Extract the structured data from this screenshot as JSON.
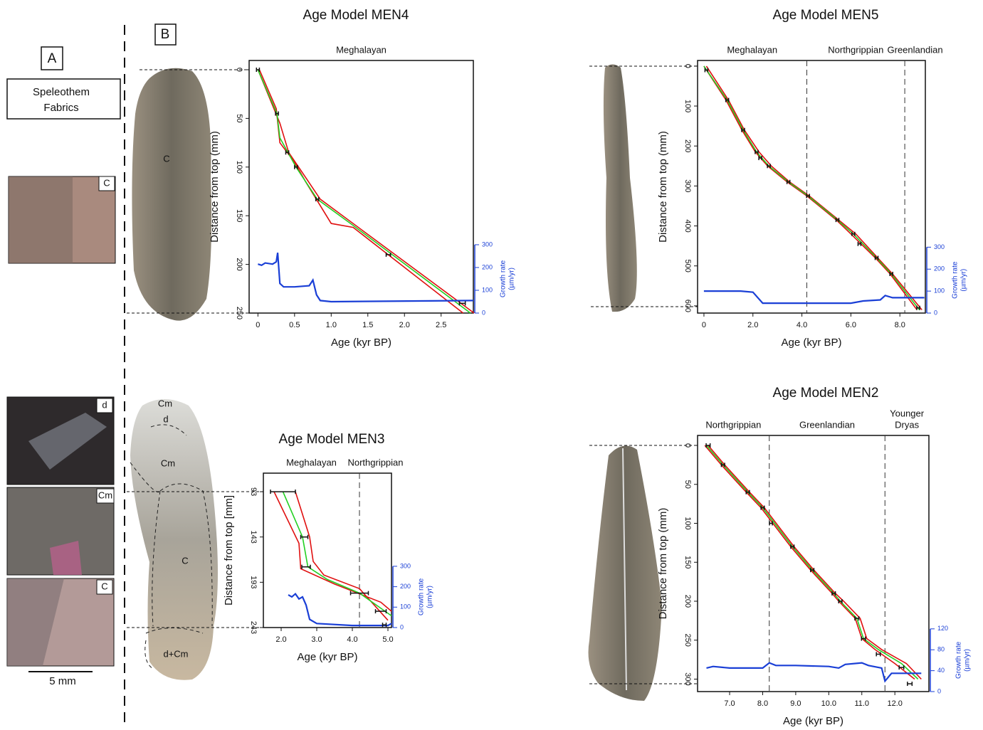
{
  "panel_labels": [
    "A",
    "B"
  ],
  "fabrics_box": [
    "Speleothem",
    "Fabrics"
  ],
  "thin_sections": [
    "C",
    "d",
    "Cm",
    "C"
  ],
  "scale_bar": "5 mm",
  "stalagmite_labels": {
    "men4": [
      "C"
    ],
    "men3": [
      "Cm",
      "d",
      "Cm",
      "C",
      "d+Cm"
    ]
  },
  "chart_data": [
    {
      "type": "line",
      "title": "Age Model MEN4",
      "x_label": "Age (kyr BP)",
      "y_label": "Distance from top (mm)",
      "y2_label": [
        "Growth rate",
        "(µm/yr)"
      ],
      "periods": [
        [
          "Meghalayan"
        ]
      ],
      "period_boundaries": [],
      "xlim": [
        -0.12,
        2.94
      ],
      "xticks": [
        0,
        0.5,
        {
          "value": 1.0,
          "label": "1.0"
        },
        1.5,
        {
          "value": 2.0,
          "label": "2.0"
        },
        2.5
      ],
      "ylim": [
        250,
        -9.5
      ],
      "yticks": [
        0,
        50,
        100,
        150,
        200,
        250
      ],
      "y2lim": [
        0,
        1109
      ],
      "y2ticks": [
        0,
        100,
        200,
        300
      ],
      "series": [
        {
          "color": "#e01010",
          "x": [
            0.02,
            0.25,
            0.3,
            0.5,
            0.65,
            1.0,
            1.3,
            2.8
          ],
          "values": [
            0,
            40,
            75,
            95,
            115,
            158,
            162,
            250
          ]
        },
        {
          "color": "#e01010",
          "x": [
            0,
            0.3,
            0.42,
            0.6,
            0.85,
            2.95
          ],
          "values": [
            0,
            55,
            85,
            105,
            133,
            250
          ]
        },
        {
          "color": "#22d022",
          "x": [
            0,
            0.26,
            0.3,
            0.52,
            0.81,
            1.3,
            2.9
          ],
          "values": [
            0,
            45,
            70,
            100,
            133,
            160,
            250
          ]
        },
        {
          "color": "#1a3fd6",
          "axis": "y2",
          "x": [
            0,
            0.05,
            0.1,
            0.2,
            0.25,
            0.27,
            0.3,
            0.35,
            0.5,
            0.7,
            0.75,
            0.8,
            0.85,
            1.0,
            2.94
          ],
          "values": [
            215,
            210,
            220,
            215,
            225,
            265,
            130,
            115,
            115,
            120,
            145,
            80,
            55,
            50,
            55
          ]
        }
      ],
      "dates": {
        "x": [
          0.0,
          0.26,
          0.4,
          0.52,
          0.81,
          1.78,
          2.79
        ],
        "values": [
          0,
          45,
          85,
          100,
          133,
          190,
          240
        ],
        "xerr": [
          0.02,
          0.02,
          0.02,
          0.02,
          0.02,
          0.03,
          0.04
        ]
      }
    },
    {
      "type": "line",
      "title": "Age Model MEN5",
      "x_label": "Age (kyr BP)",
      "y_label": "Distance from top (mm)",
      "y2_label": [
        "Growth rate",
        "(µm/yr)"
      ],
      "periods": [
        [
          "Meghalayan"
        ],
        [
          "Northgrippian"
        ],
        [
          "Greenlandian"
        ]
      ],
      "period_boundaries": [
        4.2,
        8.2
      ],
      "xlim": [
        -0.26,
        9.04
      ],
      "xticks": [
        0,
        {
          "value": 2.0,
          "label": "2.0"
        },
        {
          "value": 4.0,
          "label": "4.0"
        },
        {
          "value": 6.0,
          "label": "6.0"
        },
        {
          "value": 8.0,
          "label": "8.0"
        }
      ],
      "ylim": [
        618,
        -14
      ],
      "yticks": [
        0,
        100,
        200,
        300,
        400,
        500,
        600
      ],
      "y2lim": [
        0,
        1150
      ],
      "y2ticks": [
        0,
        100,
        200,
        300
      ],
      "series": [
        {
          "color": "#e01010",
          "x": [
            0,
            0.9,
            1.55,
            2.1,
            2.6,
            3.4,
            4.2,
            5.4,
            6.0,
            7.0,
            7.6,
            8.7
          ],
          "values": [
            0,
            85,
            160,
            215,
            250,
            290,
            325,
            385,
            420,
            480,
            520,
            610
          ]
        },
        {
          "color": "#e01010",
          "x": [
            0.1,
            1.0,
            1.65,
            2.25,
            2.75,
            3.5,
            4.3,
            5.5,
            6.2,
            7.1,
            7.7,
            8.9
          ],
          "values": [
            0,
            85,
            160,
            215,
            250,
            290,
            325,
            385,
            420,
            480,
            520,
            610
          ]
        },
        {
          "color": "#22d022",
          "x": [
            0,
            0.95,
            1.6,
            2.15,
            2.65,
            3.45,
            4.25,
            5.45,
            6.1,
            7.05,
            7.65,
            8.8
          ],
          "values": [
            0,
            85,
            160,
            215,
            250,
            290,
            325,
            385,
            420,
            480,
            520,
            610
          ]
        },
        {
          "color": "#1a3fd6",
          "axis": "y2",
          "x": [
            0,
            1.5,
            2.0,
            2.4,
            2.6,
            4.0,
            6.0,
            6.5,
            7.2,
            7.4,
            7.7,
            9.0
          ],
          "values": [
            100,
            100,
            95,
            45,
            45,
            45,
            45,
            55,
            60,
            80,
            70,
            70
          ]
        }
      ],
      "dates": {
        "x": [
          0.1,
          0.95,
          1.6,
          2.15,
          2.3,
          2.65,
          3.45,
          4.25,
          5.45,
          6.1,
          6.35,
          7.05,
          7.65,
          8.75
        ],
        "values": [
          10,
          85,
          160,
          215,
          230,
          250,
          290,
          325,
          385,
          420,
          445,
          480,
          520,
          605
        ],
        "xerr": [
          0.05,
          0.04,
          0.04,
          0.04,
          0.04,
          0.04,
          0.04,
          0.04,
          0.04,
          0.05,
          0.05,
          0.05,
          0.05,
          0.06
        ]
      }
    },
    {
      "type": "line",
      "title": "Age Model MEN3",
      "x_label": "Age (kyr BP)",
      "y_label": "Distance from top [mm]",
      "y2_label": [
        "Growth rate",
        "(µm/yr)"
      ],
      "periods": [
        [
          "Meghalayan"
        ],
        [
          "Northgrippian"
        ]
      ],
      "period_boundaries": [
        4.2
      ],
      "xlim": [
        1.5,
        5.1
      ],
      "xticks": [
        {
          "value": 2.0,
          "label": "2.0"
        },
        {
          "value": 3.0,
          "label": "3.0"
        },
        {
          "value": 4.0,
          "label": "4.0"
        },
        {
          "value": 5.0,
          "label": "5.0"
        }
      ],
      "ylim": [
        243,
        72.5
      ],
      "yticks": [
        93,
        143,
        193,
        243
      ],
      "y2lim": [
        0,
        756
      ],
      "y2ticks": [
        0,
        100,
        200,
        300
      ],
      "series": [
        {
          "color": "#e01010",
          "x": [
            1.8,
            2.5,
            2.55,
            3.5,
            4.8,
            5.1
          ],
          "values": [
            93,
            150,
            178,
            195,
            215,
            225
          ]
        },
        {
          "color": "#e01010",
          "x": [
            2.4,
            2.8,
            2.9,
            3.2,
            4.2,
            5.0
          ],
          "values": [
            93,
            143,
            170,
            185,
            200,
            235
          ]
        },
        {
          "color": "#22d022",
          "x": [
            2.05,
            2.6,
            2.75,
            3.3,
            4.2,
            5.1
          ],
          "values": [
            93,
            143,
            176,
            190,
            205,
            230
          ]
        },
        {
          "color": "#1a3fd6",
          "axis": "y2",
          "x": [
            2.2,
            2.3,
            2.4,
            2.5,
            2.6,
            2.7,
            2.8,
            3.0,
            4.0,
            5.0,
            5.1
          ],
          "values": [
            160,
            150,
            165,
            140,
            150,
            110,
            40,
            20,
            10,
            10,
            20
          ]
        }
      ],
      "dates": {
        "x": [
          2.05,
          2.65,
          2.7,
          4.2,
          4.8,
          4.9
        ],
        "values": [
          93,
          143,
          176,
          205,
          225,
          240
        ],
        "xerr": [
          0.35,
          0.1,
          0.12,
          0.25,
          0.15,
          0.05
        ]
      }
    },
    {
      "type": "line",
      "title": "Age Model MEN2",
      "x_label": "Age (kyr BP)",
      "y_label": "Distance from top (mm)",
      "y2_label": [
        "Growth rate",
        "(µm/yr)"
      ],
      "periods": [
        [
          "Northgrippian"
        ],
        [
          "Greenlandian"
        ],
        [
          "Younger",
          "Dryas"
        ]
      ],
      "period_boundaries": [
        8.2,
        11.7
      ],
      "xlim": [
        6.03,
        13.03
      ],
      "xticks": [
        {
          "value": 7.0,
          "label": "7.0"
        },
        {
          "value": 8.0,
          "label": "8.0"
        },
        {
          "value": 9.0,
          "label": "9.0"
        },
        {
          "value": 10.0,
          "label": "10.0"
        },
        {
          "value": 11.0,
          "label": "11.0"
        },
        {
          "value": 12.0,
          "label": "12.0"
        }
      ],
      "ylim": [
        316,
        -12.8
      ],
      "yticks": [
        0,
        50,
        100,
        150,
        200,
        250,
        300
      ],
      "y2lim": [
        0,
        490
      ],
      "y2ticks": [
        0,
        40,
        80,
        120
      ],
      "series": [
        {
          "color": "#e01010",
          "x": [
            6.25,
            6.75,
            7.5,
            7.95,
            8.85,
            9.45,
            10.1,
            10.3,
            10.8,
            11.0,
            11.4,
            12.0,
            12.6
          ],
          "values": [
            0,
            25,
            60,
            80,
            130,
            160,
            190,
            200,
            222,
            248,
            262,
            280,
            300
          ]
        },
        {
          "color": "#e01010",
          "x": [
            6.35,
            6.85,
            7.6,
            8.05,
            8.95,
            9.55,
            10.2,
            10.45,
            10.95,
            11.15,
            11.6,
            12.35,
            12.8
          ],
          "values": [
            0,
            25,
            60,
            80,
            130,
            160,
            190,
            200,
            222,
            248,
            262,
            280,
            300
          ]
        },
        {
          "color": "#22d022",
          "x": [
            6.3,
            6.8,
            7.55,
            8.0,
            8.9,
            9.5,
            10.15,
            10.35,
            10.85,
            11.05,
            11.5,
            12.2,
            12.7
          ],
          "values": [
            0,
            25,
            60,
            80,
            130,
            160,
            190,
            200,
            222,
            248,
            262,
            280,
            300
          ]
        },
        {
          "color": "#1a3fd6",
          "axis": "y2",
          "x": [
            6.3,
            6.5,
            7.0,
            8.0,
            8.2,
            8.4,
            9.0,
            10.0,
            10.3,
            10.5,
            11.0,
            11.2,
            11.6,
            11.7,
            11.9,
            12.8
          ],
          "values": [
            45,
            48,
            45,
            45,
            55,
            50,
            50,
            48,
            45,
            52,
            55,
            50,
            45,
            20,
            35,
            35
          ]
        }
      ],
      "dates": {
        "x": [
          6.35,
          6.8,
          7.55,
          8.0,
          8.25,
          8.9,
          9.5,
          10.15,
          10.35,
          10.85,
          11.05,
          11.5,
          12.2,
          12.45
        ],
        "values": [
          0,
          25,
          60,
          80,
          100,
          130,
          160,
          190,
          200,
          222,
          248,
          268,
          285,
          306
        ],
        "xerr": [
          0.06,
          0.05,
          0.05,
          0.05,
          0.03,
          0.05,
          0.05,
          0.05,
          0.05,
          0.06,
          0.06,
          0.06,
          0.07,
          0.07
        ]
      }
    }
  ]
}
